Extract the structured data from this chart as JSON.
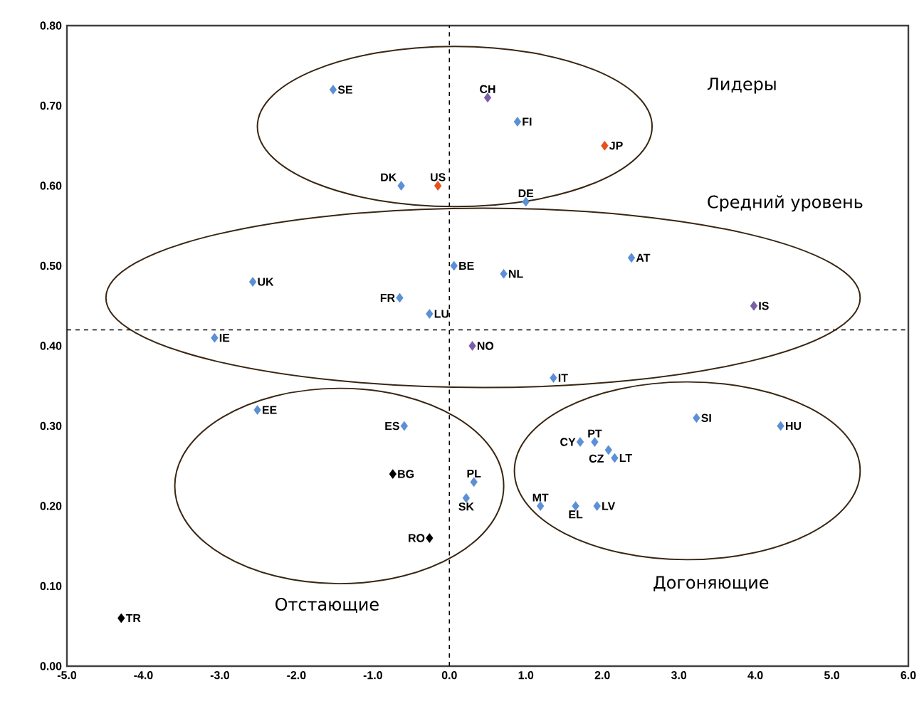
{
  "chart_data": {
    "type": "scatter",
    "marker": "diamond",
    "xlim": [
      -5,
      6
    ],
    "ylim": [
      0,
      0.8
    ],
    "xticks": [
      {
        "value": -5,
        "label": "-5.0"
      },
      {
        "value": -4,
        "label": "-4.0"
      },
      {
        "value": -3,
        "label": "-3.0"
      },
      {
        "value": -2,
        "label": "-2.0"
      },
      {
        "value": -1,
        "label": "-1.0"
      },
      {
        "value": 0,
        "label": "0.0"
      },
      {
        "value": 1,
        "label": "1.0"
      },
      {
        "value": 2,
        "label": "2.0"
      },
      {
        "value": 3,
        "label": "3.0"
      },
      {
        "value": 4,
        "label": "4.0"
      },
      {
        "value": 5,
        "label": "5.0"
      },
      {
        "value": 6,
        "label": "6.0"
      }
    ],
    "yticks": [
      {
        "value": 0,
        "label": "0.00"
      },
      {
        "value": 0.1,
        "label": "0.10"
      },
      {
        "value": 0.2,
        "label": "0.20"
      },
      {
        "value": 0.3,
        "label": "0.30"
      },
      {
        "value": 0.4,
        "label": "0.40"
      },
      {
        "value": 0.5,
        "label": "0.50"
      },
      {
        "value": 0.6,
        "label": "0.60"
      },
      {
        "value": 0.7,
        "label": "0.70"
      },
      {
        "value": 0.8,
        "label": "0.80"
      }
    ],
    "ref_lines": [
      {
        "axis": "x",
        "value": 0,
        "line_style": "dashed",
        "color": "#000000"
      },
      {
        "axis": "y",
        "value": 0.42,
        "line_style": "dashed",
        "color": "#000000"
      }
    ],
    "series": [
      {
        "color": "#5b8fd6",
        "x": [
          -1.52,
          0.89,
          -0.63,
          1.0,
          2.38,
          0.06,
          0.71,
          -2.57,
          -0.65,
          -0.26,
          -3.07,
          1.36,
          -2.51,
          -0.59,
          0.32,
          0.22,
          1.71,
          1.9,
          2.08,
          2.16,
          3.23,
          4.33,
          1.19,
          1.65,
          1.93
        ],
        "values": [
          0.72,
          0.68,
          0.6,
          0.58,
          0.51,
          0.5,
          0.49,
          0.48,
          0.46,
          0.44,
          0.41,
          0.36,
          0.32,
          0.3,
          0.23,
          0.21,
          0.28,
          0.28,
          0.27,
          0.26,
          0.31,
          0.3,
          0.2,
          0.2,
          0.2
        ]
      },
      {
        "color": "#7b5ea7",
        "x": [
          0.5,
          0.3,
          3.98
        ],
        "values": [
          0.71,
          0.4,
          0.45
        ]
      },
      {
        "color": "#e8501e",
        "x": [
          -0.15,
          2.03
        ],
        "values": [
          0.6,
          0.65
        ]
      },
      {
        "color": "#000000",
        "x": [
          -0.74,
          -0.26,
          -4.29
        ],
        "values": [
          0.24,
          0.16,
          0.06
        ]
      }
    ],
    "annotations": [
      "Лидеры",
      "Средний уровень",
      "Отстающие",
      "Догоняющие",
      {
        "text": "SE",
        "x": -1.52,
        "y": 0.72
      },
      {
        "text": "FI",
        "x": 0.89,
        "y": 0.68
      },
      {
        "text": "DK",
        "x": -0.63,
        "y": 0.6
      },
      {
        "text": "DE",
        "x": 1.0,
        "y": 0.58
      },
      {
        "text": "AT",
        "x": 2.38,
        "y": 0.51
      },
      {
        "text": "BE",
        "x": 0.06,
        "y": 0.5
      },
      {
        "text": "NL",
        "x": 0.71,
        "y": 0.49
      },
      {
        "text": "UK",
        "x": -2.57,
        "y": 0.48
      },
      {
        "text": "FR",
        "x": -0.65,
        "y": 0.46
      },
      {
        "text": "LU",
        "x": -0.26,
        "y": 0.44
      },
      {
        "text": "IE",
        "x": -3.07,
        "y": 0.41
      },
      {
        "text": "IT",
        "x": 1.36,
        "y": 0.36
      },
      {
        "text": "EE",
        "x": -2.51,
        "y": 0.32
      },
      {
        "text": "ES",
        "x": -0.59,
        "y": 0.3
      },
      {
        "text": "PL",
        "x": 0.32,
        "y": 0.23
      },
      {
        "text": "SK",
        "x": 0.22,
        "y": 0.21
      },
      {
        "text": "CY",
        "x": 1.71,
        "y": 0.28
      },
      {
        "text": "PT",
        "x": 1.9,
        "y": 0.28
      },
      {
        "text": "CZ",
        "x": 2.08,
        "y": 0.27
      },
      {
        "text": "LT",
        "x": 2.16,
        "y": 0.26
      },
      {
        "text": "SI",
        "x": 3.23,
        "y": 0.31
      },
      {
        "text": "HU",
        "x": 4.33,
        "y": 0.3
      },
      {
        "text": "MT",
        "x": 1.19,
        "y": 0.2
      },
      {
        "text": "EL",
        "x": 1.65,
        "y": 0.2
      },
      {
        "text": "LV",
        "x": 1.93,
        "y": 0.2
      },
      {
        "text": "CH",
        "x": 0.5,
        "y": 0.71
      },
      {
        "text": "NO",
        "x": 0.3,
        "y": 0.4
      },
      {
        "text": "IS",
        "x": 3.98,
        "y": 0.45
      },
      {
        "text": "US",
        "x": -0.15,
        "y": 0.6
      },
      {
        "text": "JP",
        "x": 2.03,
        "y": 0.65
      },
      {
        "text": "BG",
        "x": -0.74,
        "y": 0.24
      },
      {
        "text": "RO",
        "x": -0.26,
        "y": 0.16
      },
      {
        "text": "TR",
        "x": -4.29,
        "y": 0.06
      }
    ]
  }
}
